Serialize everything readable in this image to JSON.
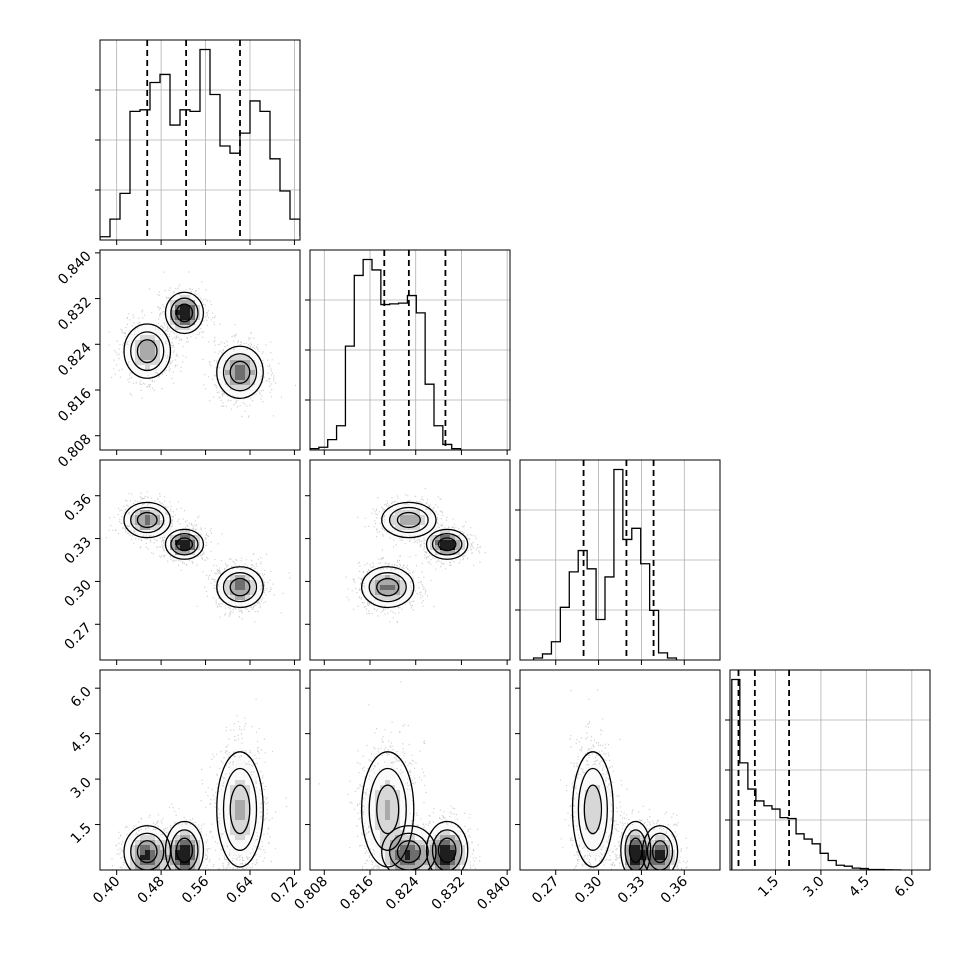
{
  "chart_data": {
    "type": "corner",
    "grid": true,
    "parameters": [
      {
        "range": [
          0.37,
          0.73
        ],
        "ticks": [
          0.4,
          0.48,
          0.56,
          0.64,
          0.72
        ],
        "tick_labels": [
          "0.40",
          "0.48",
          "0.56",
          "0.64",
          "0.72"
        ],
        "quantiles": [
          0.455,
          0.525,
          0.622
        ],
        "hist_edges_start": 0.37,
        "hist_bin_width": 0.018,
        "hist_counts": [
          0.4,
          2.6,
          5.8,
          16.0,
          16.2,
          19.6,
          20.6,
          14.3,
          16.2,
          16.0,
          23.7,
          18.1,
          11.7,
          10.8,
          13.3,
          17.3,
          16.0,
          10.1,
          6.1,
          2.6,
          0.6
        ]
      },
      {
        "range": [
          0.8055,
          0.8405
        ],
        "ticks": [
          0.808,
          0.816,
          0.824,
          0.832,
          0.84
        ],
        "tick_labels": [
          "0.808",
          "0.816",
          "0.824",
          "0.832",
          "0.840"
        ],
        "quantiles": [
          0.8185,
          0.8228,
          0.8292
        ],
        "hist_edges_start": 0.8055,
        "hist_bin_width": 0.00155,
        "hist_counts": [
          0.2,
          0.4,
          1.5,
          3.5,
          15.0,
          25.2,
          27.5,
          26.0,
          21.0,
          21.1,
          21.2,
          22.3,
          19.8,
          9.5,
          3.5,
          0.8,
          0.2
        ]
      },
      {
        "range": [
          0.245,
          0.385
        ],
        "ticks": [
          0.27,
          0.3,
          0.33,
          0.36
        ],
        "tick_labels": [
          "0.27",
          "0.30",
          "0.33",
          "0.36"
        ],
        "quantiles": [
          0.2895,
          0.3195,
          0.3385
        ],
        "hist_edges_start": 0.2545,
        "hist_bin_width": 0.00625,
        "hist_counts": [
          0.2,
          0.6,
          1.8,
          5.2,
          8.7,
          10.8,
          9.0,
          4.0,
          8.2,
          18.8,
          11.9,
          13.0,
          9.5,
          4.9,
          0.7,
          0.2
        ]
      },
      {
        "range": [
          0.0,
          6.6
        ],
        "ticks": [
          1.5,
          3.0,
          4.5,
          6.0
        ],
        "tick_labels": [
          "1.5",
          "3.0",
          "4.5",
          "6.0"
        ],
        "quantiles": [
          0.28,
          0.82,
          1.95
        ],
        "hist_edges_start": 0.06,
        "hist_bin_width": 0.265,
        "hist_counts": [
          40.0,
          22.5,
          17.0,
          14.5,
          13.5,
          12.8,
          11.0,
          10.8,
          7.6,
          6.5,
          5.5,
          3.5,
          2.0,
          1.0,
          0.8,
          0.4,
          0.3,
          0.1,
          0.1,
          0.05,
          0.02
        ]
      }
    ],
    "clusters": [
      {
        "means": [
          0.455,
          0.8228,
          0.343,
          0.45
        ],
        "sd": [
          0.022,
          0.0025,
          0.0065,
          0.45
        ],
        "weight": 0.3
      },
      {
        "means": [
          0.522,
          0.8295,
          0.326,
          0.5
        ],
        "sd": [
          0.018,
          0.0019,
          0.0055,
          0.5
        ],
        "weight": 0.32
      },
      {
        "means": [
          0.622,
          0.8191,
          0.296,
          2.0
        ],
        "sd": [
          0.022,
          0.0024,
          0.0075,
          1.0
        ],
        "weight": 0.38
      }
    ]
  }
}
